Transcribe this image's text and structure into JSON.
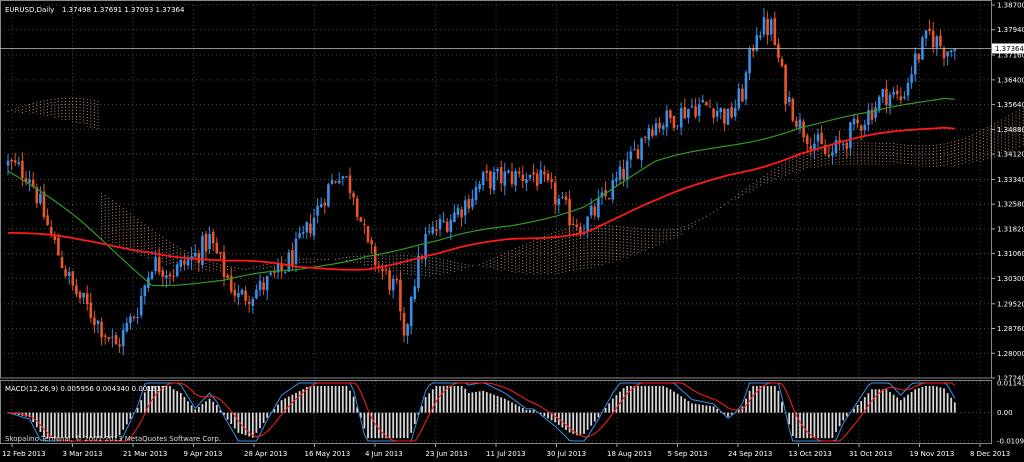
{
  "header": {
    "symbol": "EURUSD,Daily",
    "ohlc": "1.37498 1.37691 1.37093 1.37364"
  },
  "price_axis": {
    "labels": [
      "1.38700",
      "1.37940",
      "1.37160",
      "1.36400",
      "1.35640",
      "1.34880",
      "1.34120",
      "1.33340",
      "1.32580",
      "1.31820",
      "1.31060",
      "1.30300",
      "1.29520",
      "1.28760",
      "1.28000",
      "1.27240"
    ],
    "current_price": "1.37364"
  },
  "macd": {
    "label": "MACD(12,26,9) 0.005956 0.004340 0.001617",
    "axis_labels": [
      "0.011434",
      "0.00",
      "-0.010937"
    ]
  },
  "watermark": "Skopalino Terminal, © 2001-2013 MetaQuotes Software Corp.",
  "time_axis": [
    "12 Feb 2013",
    "3 Mar 2013",
    "21 Mar 2013",
    "9 Apr 2013",
    "28 Apr 2013",
    "16 May 2013",
    "4 Jun 2013",
    "23 Jun 2013",
    "11 Jul 2013",
    "30 Jul 2013",
    "18 Aug 2013",
    "5 Sep 2013",
    "24 Sep 2013",
    "13 Oct 2013",
    "31 Oct 2013",
    "19 Nov 2013",
    "8 Dec 2013"
  ],
  "colors": {
    "background": "#000000",
    "grid": "#5a5a5a",
    "bull": "#3a8ee6",
    "bear": "#e8562a",
    "ma_fast": "#2f9a24",
    "ma_slow": "#ff1a1a",
    "cloud_up": "#ffb894",
    "cloud_down": "#cfcfcf",
    "macd_hist": "#d8d8d8",
    "macd_main": "#3a8ee6",
    "macd_signal": "#ff2020"
  },
  "chart_data": {
    "type": "candlestick",
    "symbol": "EURUSD",
    "timeframe": "Daily",
    "ylim": [
      1.2724,
      1.387
    ],
    "last_close": 1.37364,
    "waypoints": [
      [
        0,
        1.338
      ],
      [
        6,
        1.335
      ],
      [
        12,
        1.316
      ],
      [
        18,
        1.3
      ],
      [
        24,
        1.291
      ],
      [
        30,
        1.282
      ],
      [
        36,
        1.294
      ],
      [
        40,
        1.308
      ],
      [
        46,
        1.305
      ],
      [
        52,
        1.31
      ],
      [
        56,
        1.315
      ],
      [
        60,
        1.305
      ],
      [
        64,
        1.297
      ],
      [
        70,
        1.3
      ],
      [
        76,
        1.305
      ],
      [
        82,
        1.315
      ],
      [
        88,
        1.329
      ],
      [
        92,
        1.336
      ],
      [
        96,
        1.33
      ],
      [
        100,
        1.312
      ],
      [
        104,
        1.305
      ],
      [
        108,
        1.299
      ],
      [
        110,
        1.282
      ],
      [
        112,
        1.299
      ],
      [
        116,
        1.315
      ],
      [
        120,
        1.319
      ],
      [
        126,
        1.325
      ],
      [
        132,
        1.333
      ],
      [
        138,
        1.334
      ],
      [
        146,
        1.335
      ],
      [
        152,
        1.328
      ],
      [
        156,
        1.322
      ],
      [
        160,
        1.319
      ],
      [
        166,
        1.328
      ],
      [
        172,
        1.337
      ],
      [
        178,
        1.35
      ],
      [
        184,
        1.352
      ],
      [
        190,
        1.356
      ],
      [
        196,
        1.356
      ],
      [
        200,
        1.352
      ],
      [
        204,
        1.36
      ],
      [
        208,
        1.38
      ],
      [
        212,
        1.38
      ],
      [
        216,
        1.36
      ],
      [
        220,
        1.35
      ],
      [
        224,
        1.345
      ],
      [
        228,
        1.34
      ],
      [
        232,
        1.345
      ],
      [
        236,
        1.35
      ],
      [
        240,
        1.355
      ],
      [
        244,
        1.36
      ],
      [
        248,
        1.358
      ],
      [
        252,
        1.37
      ],
      [
        256,
        1.378
      ],
      [
        260,
        1.3736
      ]
    ],
    "ma_fast": [
      [
        0,
        1.336
      ],
      [
        20,
        1.32
      ],
      [
        40,
        1.302
      ],
      [
        60,
        1.302
      ],
      [
        80,
        1.305
      ],
      [
        100,
        1.311
      ],
      [
        120,
        1.314
      ],
      [
        140,
        1.319
      ],
      [
        160,
        1.326
      ],
      [
        180,
        1.338
      ],
      [
        200,
        1.344
      ],
      [
        220,
        1.35
      ],
      [
        240,
        1.353
      ],
      [
        260,
        1.359
      ]
    ],
    "ma_slow": [
      [
        0,
        1.317
      ],
      [
        20,
        1.314
      ],
      [
        40,
        1.312
      ],
      [
        60,
        1.308
      ],
      [
        80,
        1.306
      ],
      [
        100,
        1.307
      ],
      [
        120,
        1.31
      ],
      [
        140,
        1.315
      ],
      [
        160,
        1.318
      ],
      [
        180,
        1.326
      ],
      [
        200,
        1.335
      ],
      [
        220,
        1.342
      ],
      [
        240,
        1.346
      ],
      [
        260,
        1.35
      ]
    ]
  }
}
